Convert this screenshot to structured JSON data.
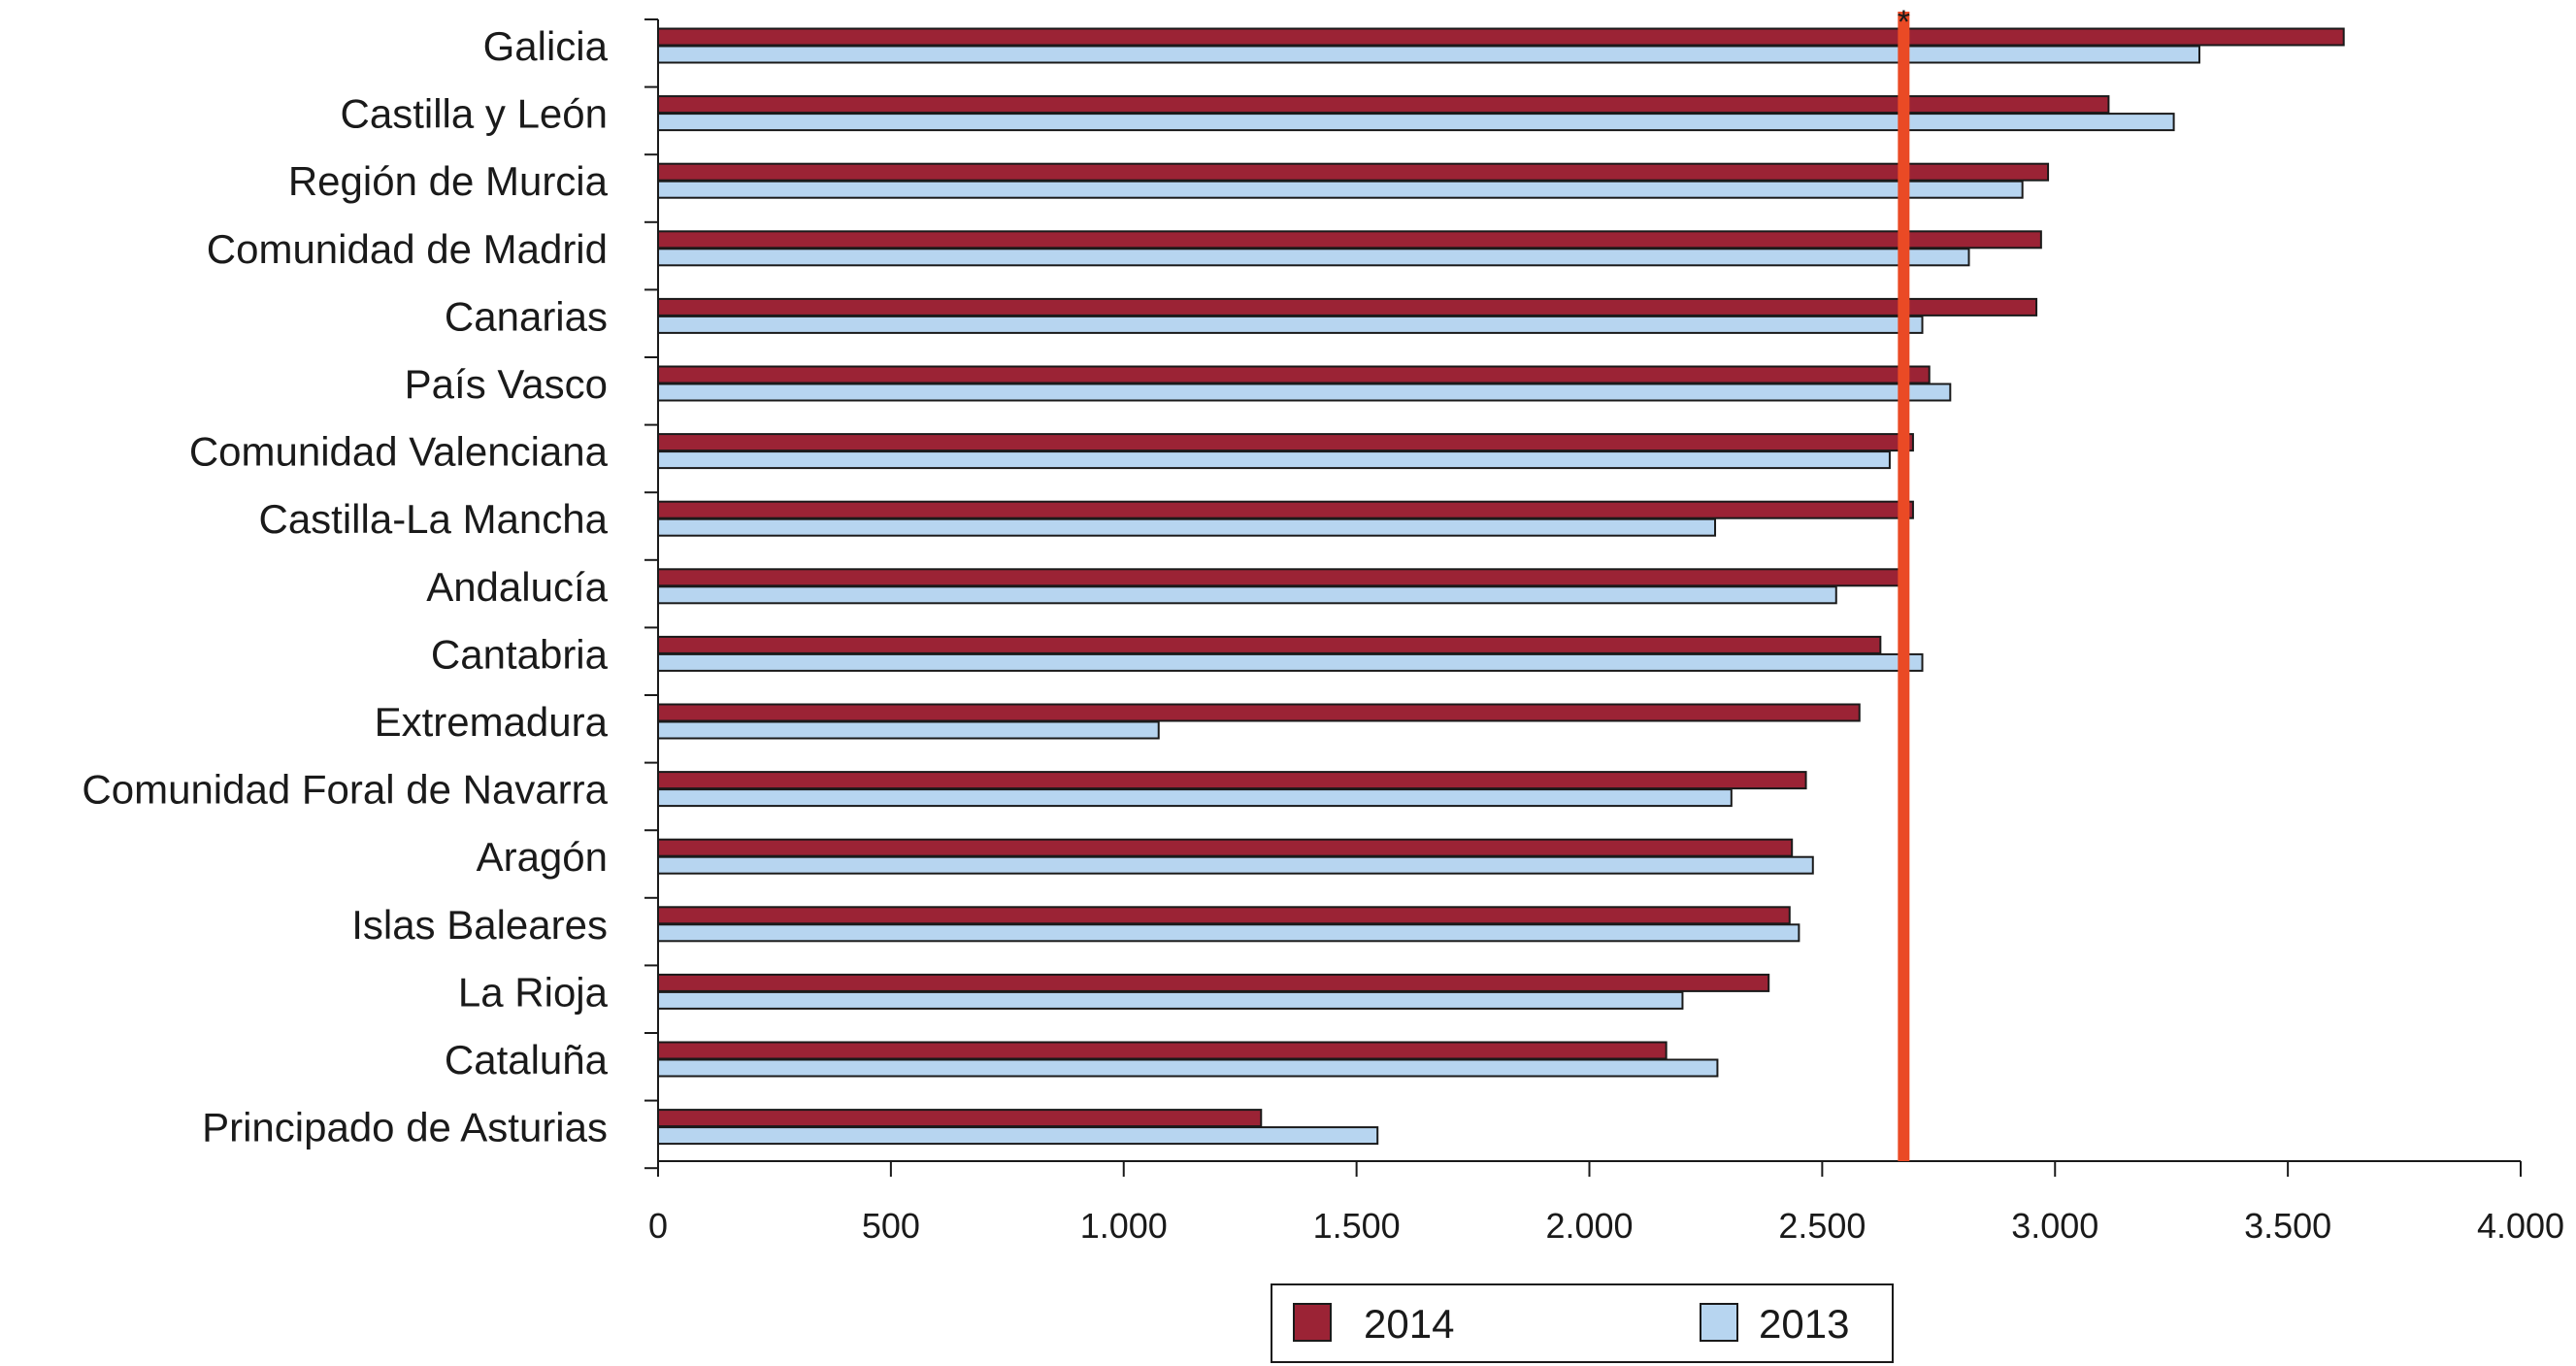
{
  "colors": {
    "series_2014": "#9b2335",
    "series_2013": "#b7d5f0",
    "reference_line": "#ea4a25",
    "axis": "#1a1a1a"
  },
  "chart_data": {
    "type": "bar",
    "orientation": "horizontal",
    "categories": [
      "Galicia",
      "Castilla y León",
      "Región de Murcia",
      "Comunidad de Madrid",
      "Canarias",
      "País Vasco",
      "Comunidad Valenciana",
      "Castilla-La Mancha",
      "Andalucía",
      "Cantabria",
      "Extremadura",
      "Comunidad Foral de Navarra",
      "Aragón",
      "Islas Baleares",
      "La Rioja",
      "Cataluña",
      "Principado de Asturias"
    ],
    "series": [
      {
        "name": "2014",
        "values": [
          3620,
          3115,
          2985,
          2970,
          2960,
          2730,
          2695,
          2695,
          2665,
          2625,
          2580,
          2465,
          2435,
          2430,
          2385,
          2165,
          1295
        ]
      },
      {
        "name": "2013",
        "values": [
          3310,
          3255,
          2930,
          2815,
          2715,
          2775,
          2645,
          2270,
          2530,
          2715,
          1075,
          2305,
          2480,
          2450,
          2200,
          2275,
          1545
        ]
      }
    ],
    "reference_line": {
      "value": 2675,
      "label": "*"
    },
    "xlim": [
      0,
      4000
    ],
    "xticks": [
      0,
      500,
      1000,
      1500,
      2000,
      2500,
      3000,
      3500,
      4000
    ],
    "xtick_labels": [
      "0",
      "500",
      "1.000",
      "1.500",
      "2.000",
      "2.500",
      "3.000",
      "3.500",
      "4.000"
    ],
    "title": "",
    "xlabel": "",
    "ylabel": "",
    "grid": false,
    "legend": {
      "position": "bottom-center",
      "entries": [
        "2014",
        "2013"
      ]
    }
  }
}
